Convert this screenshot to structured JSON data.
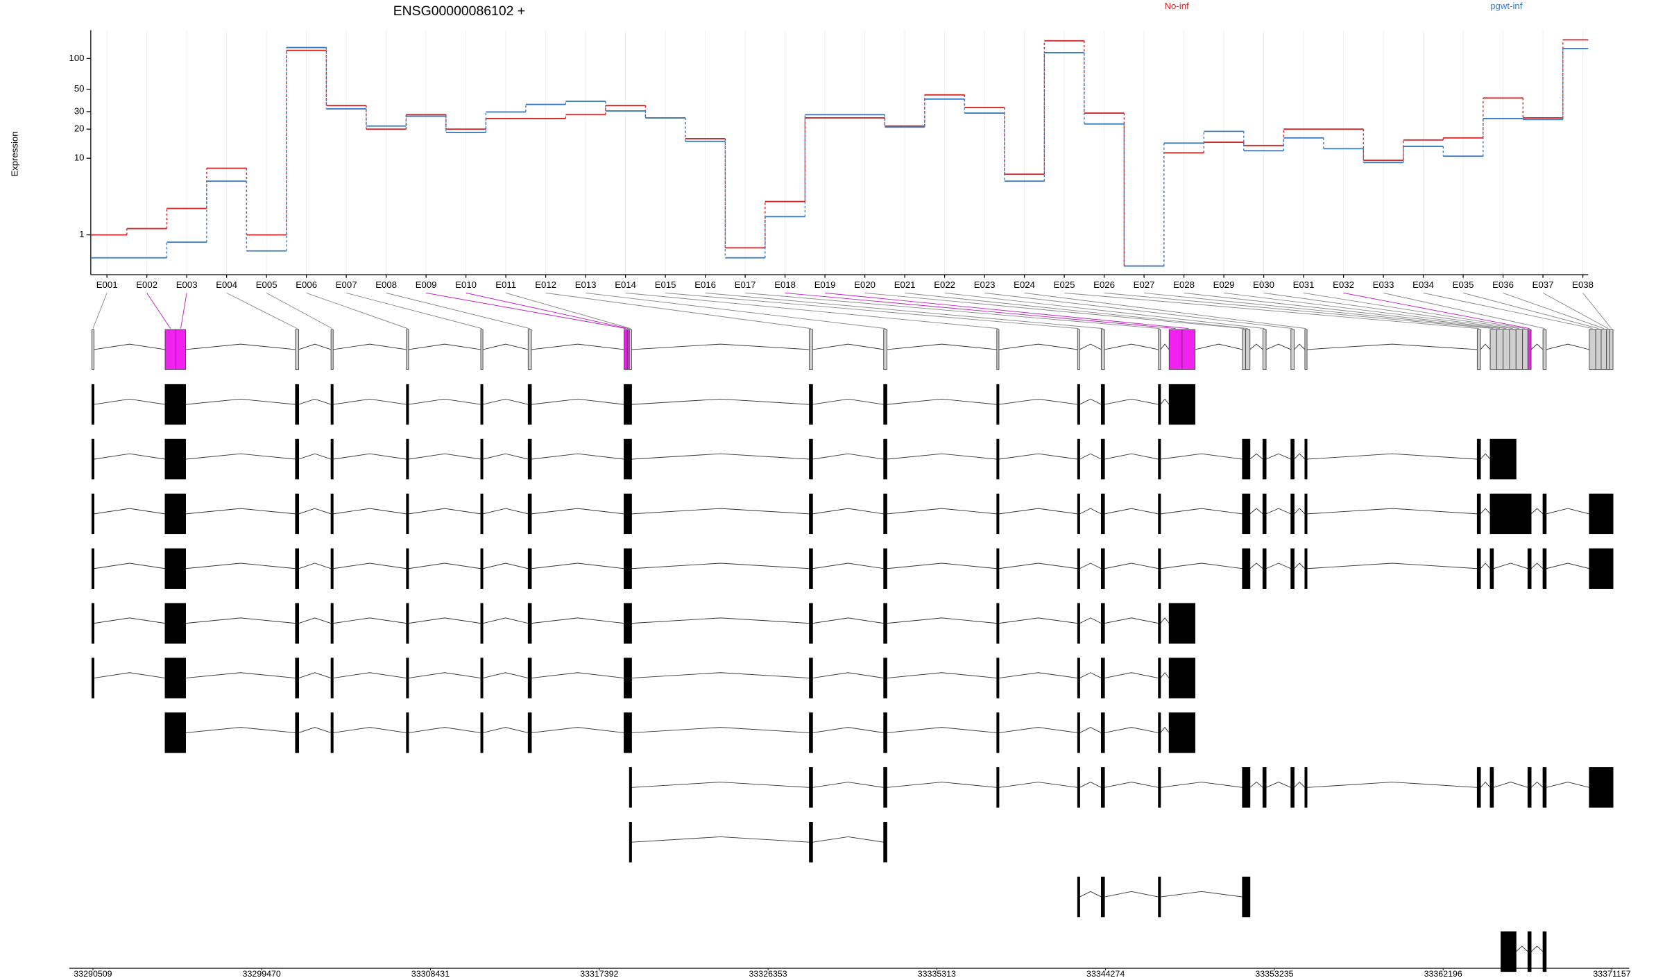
{
  "chart_data": {
    "type": "line",
    "title": "ENSG00000086102 +",
    "y_label": "Expression",
    "categories": [
      "E001",
      "E002",
      "E003",
      "E004",
      "E005",
      "E006",
      "E007",
      "E008",
      "E009",
      "E010",
      "E011",
      "E012",
      "E013",
      "E014",
      "E015",
      "E016",
      "E017",
      "E018",
      "E019",
      "E020",
      "E021",
      "E022",
      "E023",
      "E024",
      "E025",
      "E026",
      "E027",
      "E028",
      "E029",
      "E030",
      "E031",
      "E032",
      "E033",
      "E034",
      "E035",
      "E036",
      "E037",
      "E038"
    ],
    "series": [
      {
        "name": "No-inf",
        "color": "#d62728",
        "values": [
          1.0,
          1.3,
          2.6,
          7.8,
          1.0,
          120,
          34.5,
          20,
          28,
          20,
          25.6,
          25.6,
          28,
          34.5,
          26,
          16,
          0.5,
          3.2,
          26,
          26,
          21.5,
          44,
          33,
          6.7,
          149,
          29,
          0,
          11.4,
          14.7,
          13.6,
          20,
          20,
          9.5,
          15.5,
          16.3,
          41,
          26,
          152
        ]
      },
      {
        "name": "pgwt-inf",
        "color": "#3a7dbf",
        "values": [
          0.2,
          0.2,
          0.7,
          5.6,
          0.4,
          128,
          32,
          21.5,
          27,
          18.5,
          29.8,
          35.4,
          38,
          30.5,
          26,
          15,
          0.2,
          2.0,
          28,
          28,
          21,
          40,
          29,
          5.6,
          114,
          22.6,
          0,
          14.4,
          19,
          12,
          16.3,
          12.6,
          9,
          13.3,
          10.5,
          25.6,
          25,
          125
        ]
      }
    ],
    "y_scale": "log1p",
    "ylim": [
      0,
      180
    ],
    "yticks": [
      1,
      10,
      20,
      30,
      50,
      100
    ],
    "grid": true,
    "genomic_axis": {
      "xlim": [
        33290509,
        33371157
      ],
      "xticks": [
        33290509,
        33299470,
        33308431,
        33317392,
        33326353,
        33335313,
        33344274,
        33353235,
        33362196,
        33371157
      ]
    }
  }
}
